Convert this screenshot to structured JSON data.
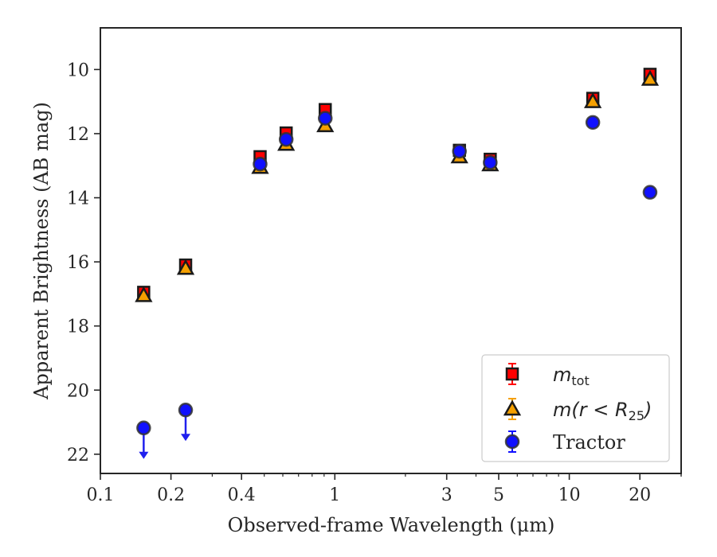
{
  "chart_data": {
    "type": "scatter",
    "xlabel": "Observed-frame Wavelength (μm)",
    "ylabel": "Apparent Brightness (AB mag)",
    "xscale": "log",
    "xlim": [
      0.1,
      30
    ],
    "ylim": [
      22.6,
      8.7
    ],
    "y_inverted": true,
    "xticks": [
      {
        "value": 0.1,
        "label": "0.1"
      },
      {
        "value": 0.2,
        "label": "0.2"
      },
      {
        "value": 0.4,
        "label": "0.4"
      },
      {
        "value": 1,
        "label": "1"
      },
      {
        "value": 3,
        "label": "3"
      },
      {
        "value": 5,
        "label": "5"
      },
      {
        "value": 10,
        "label": "10"
      },
      {
        "value": 20,
        "label": "20"
      }
    ],
    "yticks": [
      10,
      12,
      14,
      16,
      18,
      20,
      22
    ],
    "grid": false,
    "legend_placement": "lower-right",
    "series": [
      {
        "name": "m_tot",
        "legend_text": "m",
        "legend_sub": "tot",
        "marker": "square",
        "color": "#ff0000",
        "edge": "#1a1a1a",
        "x": [
          0.153,
          0.231,
          0.48,
          0.62,
          0.91,
          3.4,
          4.6,
          12.6,
          22.1
        ],
        "y": [
          16.95,
          16.1,
          12.72,
          11.98,
          11.25,
          12.52,
          12.8,
          10.9,
          10.15
        ]
      },
      {
        "name": "m(r < R25)",
        "legend_prefix": "m(r < R",
        "legend_sub": "25",
        "legend_suffix": ")",
        "marker": "triangle",
        "color": "#f5a000",
        "edge": "#1a1a1a",
        "x": [
          0.153,
          0.231,
          0.48,
          0.62,
          0.91,
          3.4,
          4.6,
          12.6,
          22.1
        ],
        "y": [
          17.05,
          16.2,
          13.05,
          12.33,
          11.75,
          12.72,
          12.97,
          11.0,
          10.3
        ]
      },
      {
        "name": "Tractor",
        "legend_text": "Tractor",
        "marker": "circle",
        "color": "#1010ff",
        "edge": "#333333",
        "x": [
          0.153,
          0.231,
          0.48,
          0.62,
          0.91,
          3.4,
          4.6,
          12.6,
          22.1
        ],
        "y": [
          21.18,
          20.62,
          12.95,
          12.18,
          11.52,
          12.55,
          12.9,
          11.65,
          13.83
        ],
        "upper_limits": [
          true,
          true,
          false,
          false,
          false,
          false,
          false,
          false,
          false
        ]
      }
    ]
  }
}
